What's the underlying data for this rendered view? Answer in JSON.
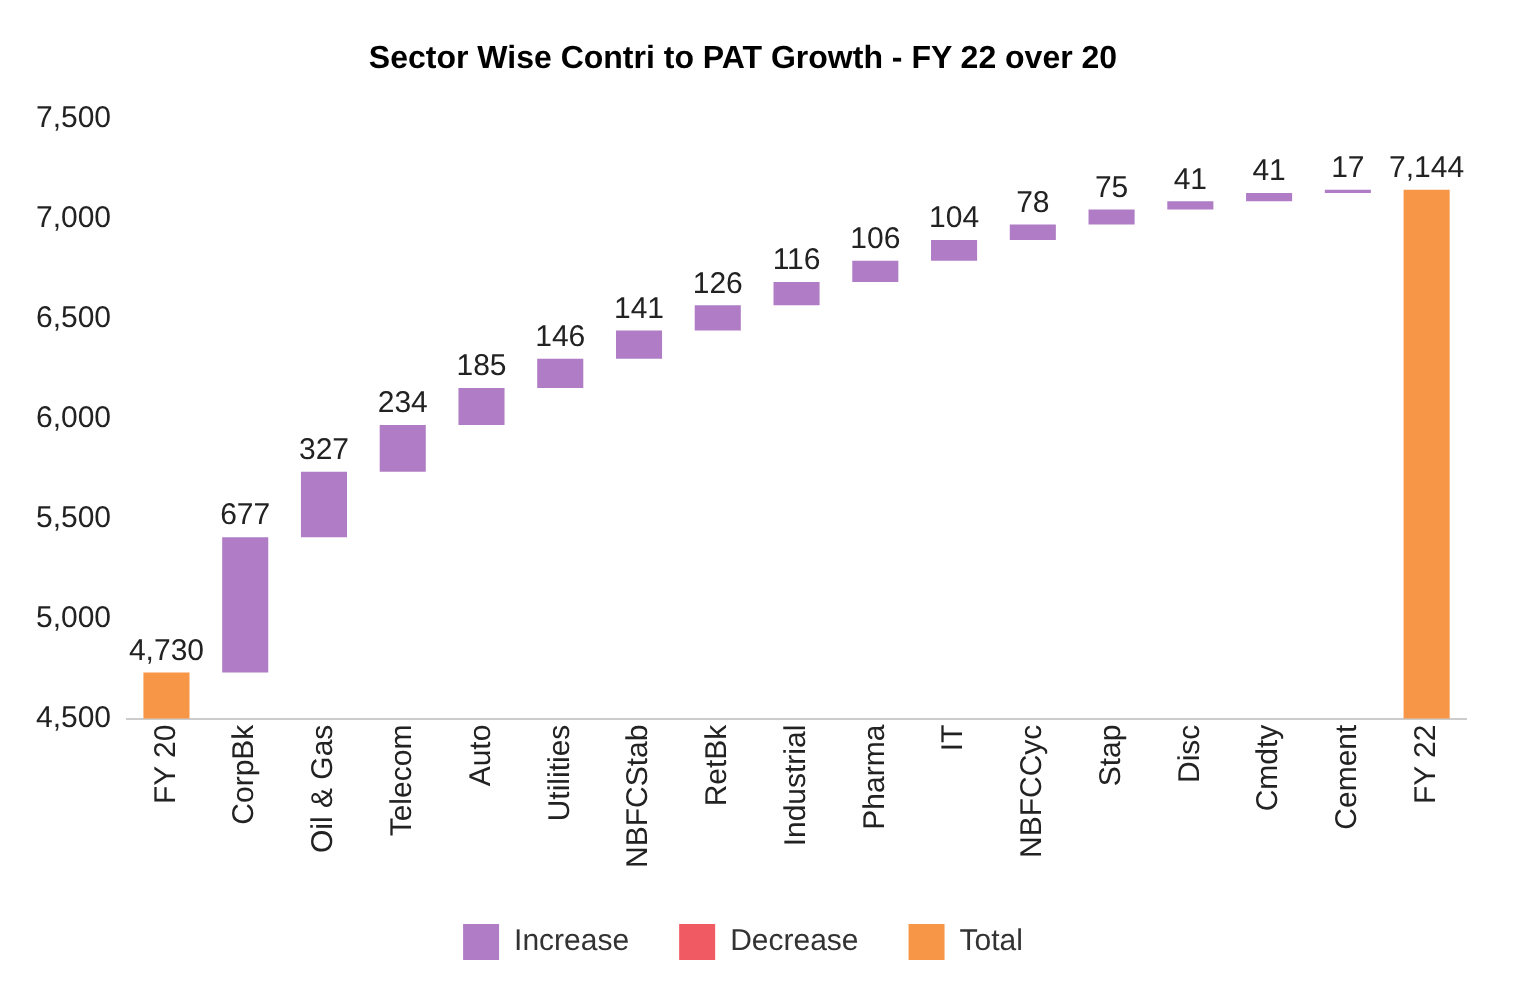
{
  "chart_data": {
    "type": "bar",
    "title": "Sector Wise Contri to PAT Growth - FY 22 over 20",
    "categories": [
      "FY 20",
      "CorpBk",
      "Oil & Gas",
      "Telecom",
      "Auto",
      "Utilities",
      "NBFCStab",
      "RetBk",
      "Industrial",
      "Pharma",
      "IT",
      "NBFCCyc",
      "Stap",
      "Disc",
      "Cmdty",
      "Cement",
      "FY 22"
    ],
    "series": [
      {
        "name": "Increase",
        "color": "#b07cc6",
        "base": [
          null,
          4730,
          5407,
          5734,
          5968,
          6153,
          6299,
          6440,
          6566,
          6682,
          6788,
          6892,
          6970,
          7045,
          7086,
          7127,
          null
        ],
        "values": [
          null,
          677,
          327,
          234,
          185,
          146,
          141,
          126,
          116,
          106,
          104,
          78,
          75,
          41,
          41,
          17,
          null
        ],
        "value_labels": [
          null,
          "677",
          "327",
          "234",
          "185",
          "146",
          "141",
          "126",
          "116",
          "106",
          "104",
          "78",
          "75",
          "41",
          "41",
          "17",
          null
        ]
      },
      {
        "name": "Decrease",
        "color": "#f05a62",
        "values": [
          null,
          null,
          null,
          null,
          null,
          null,
          null,
          null,
          null,
          null,
          null,
          null,
          null,
          null,
          null,
          null,
          null
        ]
      },
      {
        "name": "Total",
        "color": "#f79646",
        "values": [
          4730,
          null,
          null,
          null,
          null,
          null,
          null,
          null,
          null,
          null,
          null,
          null,
          null,
          null,
          null,
          null,
          7144
        ],
        "value_labels": [
          "4,730",
          null,
          null,
          null,
          null,
          null,
          null,
          null,
          null,
          null,
          null,
          null,
          null,
          null,
          null,
          null,
          "7,144"
        ]
      }
    ],
    "ylim": [
      4500,
      7500
    ],
    "yticks": [
      {
        "value": 4500,
        "label": "4,500"
      },
      {
        "value": 5000,
        "label": "5,000"
      },
      {
        "value": 5500,
        "label": "5,500"
      },
      {
        "value": 6000,
        "label": "6,000"
      },
      {
        "value": 6500,
        "label": "6,500"
      },
      {
        "value": 7000,
        "label": "7,000"
      },
      {
        "value": 7500,
        "label": "7,500"
      }
    ],
    "grid": false,
    "legend": "bottom"
  }
}
